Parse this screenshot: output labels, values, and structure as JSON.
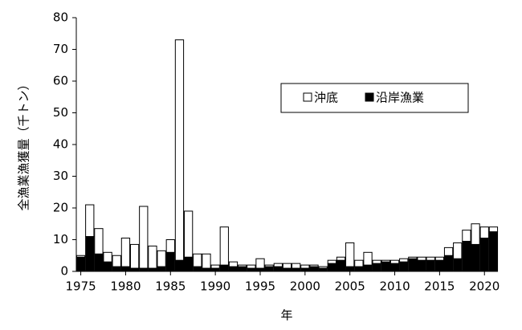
{
  "chart_data": {
    "type": "stacked-bar",
    "ylabel": "全漁業漁獲量（千トン）",
    "xlabel": "年",
    "x": [
      1975,
      1976,
      1977,
      1978,
      1979,
      1980,
      1981,
      1982,
      1983,
      1984,
      1985,
      1986,
      1987,
      1988,
      1989,
      1990,
      1991,
      1992,
      1993,
      1994,
      1995,
      1996,
      1997,
      1998,
      1999,
      2000,
      2001,
      2002,
      2003,
      2004,
      2005,
      2006,
      2007,
      2008,
      2009,
      2010,
      2011,
      2012,
      2013,
      2014,
      2015,
      2016,
      2017,
      2018,
      2019,
      2020,
      2021
    ],
    "series": [
      {
        "name": "沖底",
        "color": "#ffffff",
        "values": [
          0.5,
          10,
          8,
          3,
          3.5,
          9,
          7.5,
          19.5,
          7,
          5,
          4,
          69.5,
          14.5,
          4,
          4.5,
          1,
          12,
          1.5,
          0.5,
          1,
          3,
          0.5,
          1,
          1.5,
          1.5,
          1,
          0.5,
          0.5,
          1,
          1,
          7.5,
          2,
          4,
          1,
          0.5,
          1,
          1,
          0.5,
          1,
          1,
          1,
          2.5,
          5,
          3.5,
          6.5,
          3.5,
          1.5
        ]
      },
      {
        "name": "沿岸漁業",
        "color": "#000000",
        "values": [
          4.5,
          11,
          5.5,
          3,
          1.5,
          1.5,
          1,
          1,
          1,
          1.5,
          6,
          3.5,
          4.5,
          1.5,
          1,
          1,
          2,
          1.5,
          1.5,
          1,
          1,
          1.5,
          1.5,
          1,
          1,
          1,
          1.5,
          1,
          2.5,
          3.5,
          1.5,
          1.5,
          2,
          2.5,
          3,
          2.5,
          3,
          4,
          3.5,
          3.5,
          3.5,
          5,
          4,
          9.5,
          8.5,
          10.5,
          12.5
        ]
      }
    ],
    "xlim": [
      1974.5,
      2021.5
    ],
    "xticks": [
      1975,
      1980,
      1985,
      1990,
      1995,
      2000,
      2005,
      2010,
      2015,
      2020
    ],
    "ylim": [
      0,
      80
    ],
    "yticks": [
      0,
      10,
      20,
      30,
      40,
      50,
      60,
      70,
      80
    ]
  }
}
